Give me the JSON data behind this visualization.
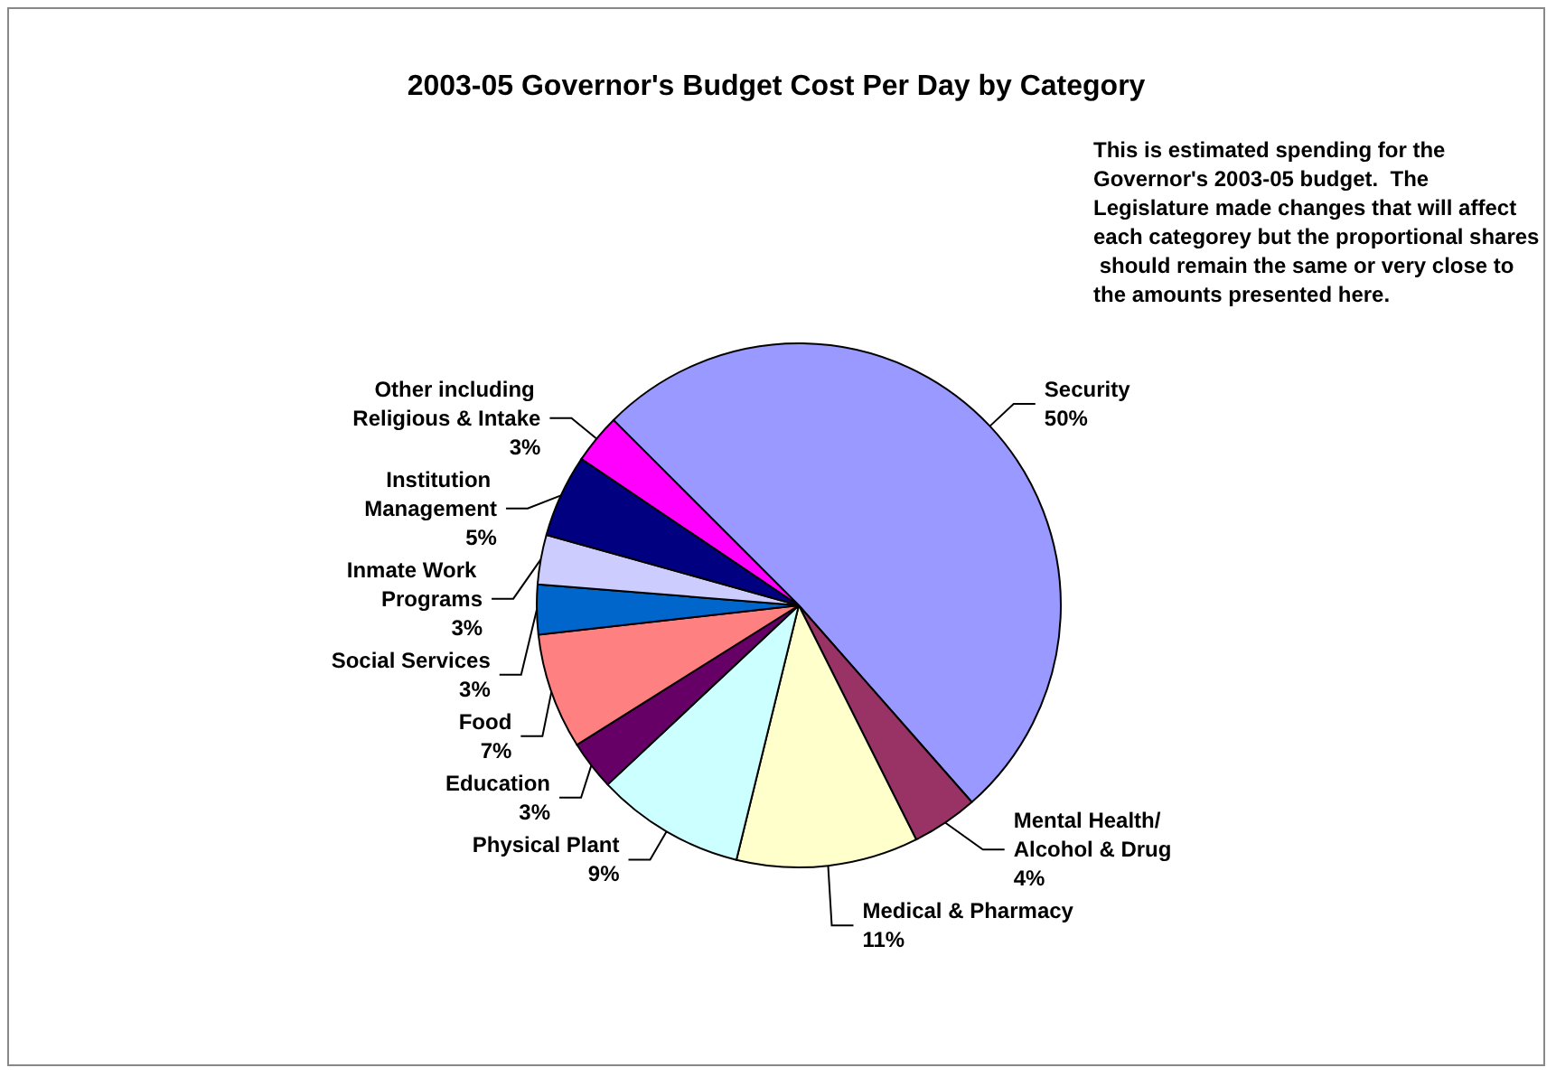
{
  "chart_data": {
    "type": "pie",
    "title": "2003-05 Governor's Budget Cost Per Day by Category",
    "categories": [
      "Security",
      "Mental Health/Alcohol & Drug",
      "Medical & Pharmacy",
      "Physical Plant",
      "Education",
      "Food",
      "Social Services",
      "Inmate Work Programs",
      "Institution Management",
      "Other including Religious & Intake"
    ],
    "values": [
      50,
      4,
      11,
      9,
      3,
      7,
      3,
      3,
      5,
      3
    ],
    "value_labels": [
      "50%",
      "4%",
      "11%",
      "9%",
      "3%",
      "7%",
      "3%",
      "3%",
      "5%",
      "3%"
    ],
    "colors": [
      "#9999ff",
      "#993366",
      "#ffffcc",
      "#ccffff",
      "#660066",
      "#ff8080",
      "#0066cc",
      "#ccccff",
      "#000080",
      "#ff00ff"
    ],
    "annotations": [
      "This is estimated spending for the Governor's 2003-05 budget.  The Legislature made changes that will affect each categorey but the proportional shares should remain the same or very close to the amounts presented here."
    ],
    "legend": false
  }
}
